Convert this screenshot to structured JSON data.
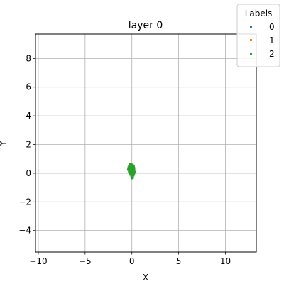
{
  "chart_data": {
    "type": "scatter",
    "title": "layer 0",
    "xlabel": "X",
    "ylabel": "Y",
    "xlim": [
      -10.3,
      13.3
    ],
    "ylim": [
      -5.5,
      9.7
    ],
    "xticks": [
      -10,
      -5,
      0,
      5,
      10
    ],
    "yticks": [
      -4,
      -2,
      0,
      2,
      4,
      6,
      8
    ],
    "xtick_labels": [
      "−10",
      "−5",
      "0",
      "5",
      "10"
    ],
    "ytick_labels": [
      "−4",
      "−2",
      "0",
      "2",
      "4",
      "6",
      "8"
    ],
    "grid": true,
    "legend": {
      "title": "Labels",
      "placement": "top-right",
      "entries": [
        {
          "name": "0",
          "color": "#1f77b4"
        },
        {
          "name": "1",
          "color": "#ff7f0e"
        },
        {
          "name": "2",
          "color": "#2ca02c"
        }
      ]
    },
    "series": [
      {
        "name": "0",
        "color": "#1f77b4",
        "points": [
          [
            -0.1,
            0.2
          ],
          [
            0.0,
            0.1
          ]
        ]
      },
      {
        "name": "1",
        "color": "#ff7f0e",
        "points": [
          [
            0.05,
            0.3
          ],
          [
            -0.05,
            0.0
          ]
        ]
      },
      {
        "name": "2",
        "color": "#2ca02c",
        "points": [
          [
            -0.25,
            0.65
          ],
          [
            -0.1,
            0.6
          ],
          [
            0.0,
            0.6
          ],
          [
            0.1,
            0.55
          ],
          [
            0.2,
            0.5
          ],
          [
            -0.3,
            0.5
          ],
          [
            -0.15,
            0.45
          ],
          [
            0.05,
            0.45
          ],
          [
            0.2,
            0.4
          ],
          [
            -0.35,
            0.35
          ],
          [
            -0.2,
            0.35
          ],
          [
            0.0,
            0.3
          ],
          [
            0.15,
            0.3
          ],
          [
            0.25,
            0.25
          ],
          [
            -0.4,
            0.25
          ],
          [
            -0.25,
            0.2
          ],
          [
            -0.1,
            0.2
          ],
          [
            0.05,
            0.15
          ],
          [
            0.2,
            0.15
          ],
          [
            -0.3,
            0.1
          ],
          [
            -0.15,
            0.05
          ],
          [
            0.0,
            0.05
          ],
          [
            0.15,
            0.05
          ],
          [
            0.25,
            0.0
          ],
          [
            -0.2,
            0.0
          ],
          [
            -0.05,
            -0.05
          ],
          [
            0.1,
            -0.05
          ],
          [
            0.2,
            -0.1
          ],
          [
            -0.15,
            -0.1
          ],
          [
            0.0,
            -0.15
          ],
          [
            0.15,
            -0.15
          ],
          [
            0.05,
            -0.25
          ],
          [
            -0.05,
            -0.2
          ],
          [
            0.1,
            -0.3
          ],
          [
            0.0,
            -0.35
          ],
          [
            -0.35,
            0.4
          ],
          [
            -0.3,
            0.2
          ],
          [
            0.25,
            0.35
          ],
          [
            0.3,
            0.1
          ],
          [
            -0.1,
            0.5
          ],
          [
            0.1,
            0.25
          ],
          [
            -0.2,
            0.25
          ],
          [
            0.0,
            -0.05
          ],
          [
            0.18,
            0.22
          ],
          [
            -0.05,
            0.35
          ]
        ]
      }
    ]
  }
}
